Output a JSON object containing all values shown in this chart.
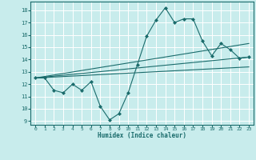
{
  "title": "",
  "xlabel": "Humidex (Indice chaleur)",
  "background_color": "#c8ecec",
  "grid_color": "#ffffff",
  "line_color": "#1a6b6b",
  "xlim": [
    -0.5,
    23.5
  ],
  "ylim": [
    8.7,
    18.7
  ],
  "yticks": [
    9,
    10,
    11,
    12,
    13,
    14,
    15,
    16,
    17,
    18
  ],
  "xticks": [
    0,
    1,
    2,
    3,
    4,
    5,
    6,
    7,
    8,
    9,
    10,
    11,
    12,
    13,
    14,
    15,
    16,
    17,
    18,
    19,
    20,
    21,
    22,
    23
  ],
  "line1_x": [
    0,
    1,
    2,
    3,
    4,
    5,
    6,
    7,
    8,
    9,
    10,
    11,
    12,
    13,
    14,
    15,
    16,
    17,
    18,
    19,
    20,
    21,
    22,
    23
  ],
  "line1_y": [
    12.5,
    12.5,
    11.5,
    11.3,
    12.0,
    11.5,
    12.2,
    10.2,
    9.1,
    9.6,
    11.3,
    13.6,
    15.9,
    17.2,
    18.2,
    17.0,
    17.3,
    17.3,
    15.5,
    14.3,
    15.3,
    14.8,
    14.1,
    14.2
  ],
  "line2_x": [
    0,
    23
  ],
  "line2_y": [
    12.5,
    14.2
  ],
  "line3_x": [
    0,
    23
  ],
  "line3_y": [
    12.5,
    15.3
  ],
  "line4_x": [
    0,
    23
  ],
  "line4_y": [
    12.5,
    13.4
  ]
}
